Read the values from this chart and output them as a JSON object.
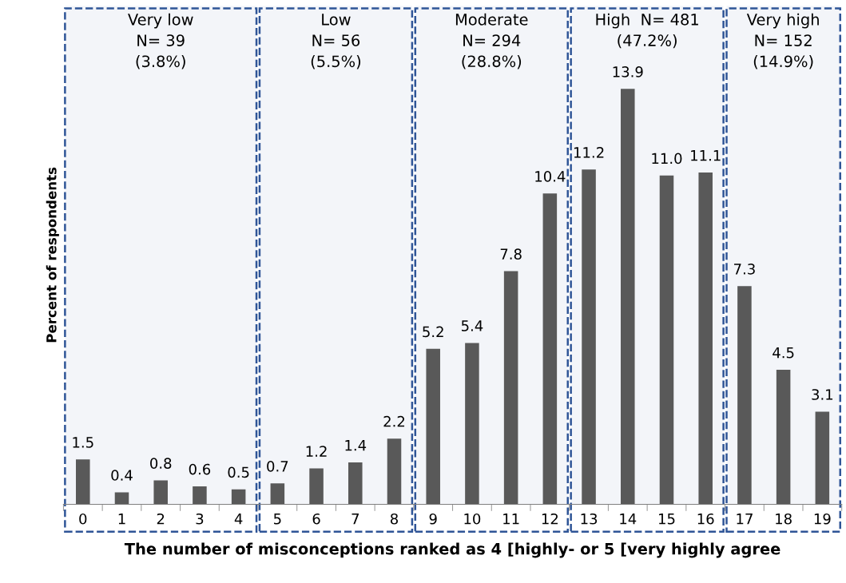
{
  "chart_data": {
    "type": "bar",
    "xlabel": "The number of misconceptions ranked as 4 [highly- or 5 [very highly agree",
    "ylabel": "Percent of respondents",
    "categories": [
      "0",
      "1",
      "2",
      "3",
      "4",
      "5",
      "6",
      "7",
      "8",
      "9",
      "10",
      "11",
      "12",
      "13",
      "14",
      "15",
      "16",
      "17",
      "18",
      "19"
    ],
    "values": [
      1.5,
      0.4,
      0.8,
      0.6,
      0.5,
      0.7,
      1.2,
      1.4,
      2.2,
      5.2,
      5.4,
      7.8,
      10.4,
      11.2,
      13.9,
      11.0,
      11.1,
      7.3,
      4.5,
      3.1
    ],
    "color": "#595959",
    "value_labels": [
      "1.5",
      "0.4",
      "0.8",
      "0.6",
      "0.5",
      "0.7",
      "1.2",
      "1.4",
      "2.2",
      "5.2",
      "5.4",
      "7.8",
      "10.4",
      "11.2",
      "13.9",
      "11.0",
      "11.1",
      "7.3",
      "4.5",
      "3.1"
    ],
    "grid": false,
    "legend": false,
    "bands": [
      {
        "axis": "x",
        "from": "0",
        "to": "4",
        "label": "Very low\nN= 39\n(3.8%)",
        "color": "#2f5597"
      },
      {
        "axis": "x",
        "from": "5",
        "to": "8",
        "label": "Low\nN= 56\n(5.5%)",
        "color": "#2f5597"
      },
      {
        "axis": "x",
        "from": "9",
        "to": "12",
        "label": "Moderate\nN= 294\n(28.8%)",
        "color": "#2f5597"
      },
      {
        "axis": "x",
        "from": "13",
        "to": "16",
        "label": "High  N= 481\n(47.2%)",
        "color": "#2f5597"
      },
      {
        "axis": "x",
        "from": "17",
        "to": "19",
        "label": "Very high\nN= 152\n(14.9%)",
        "color": "#2f5597"
      }
    ]
  }
}
